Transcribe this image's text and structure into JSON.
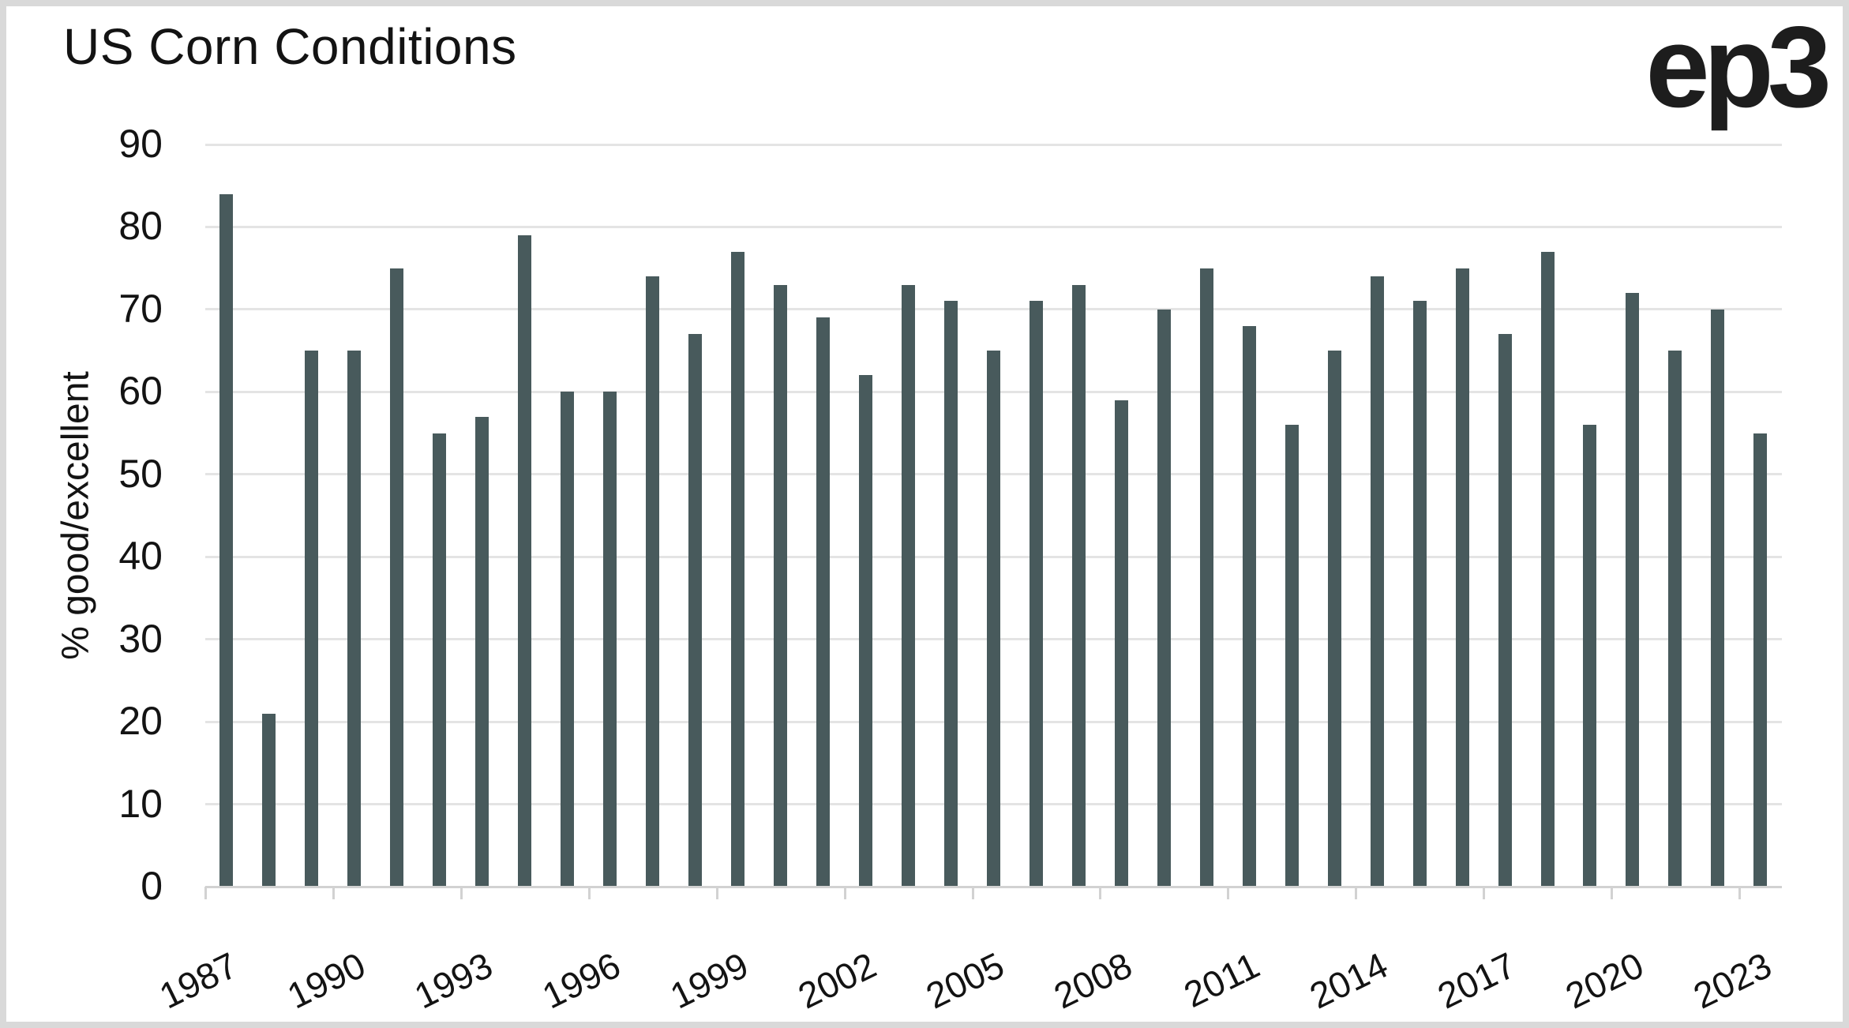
{
  "header": {
    "title": "US Corn Conditions",
    "logo_text": "ep3"
  },
  "colors": {
    "bar": "#485a5c",
    "grid": "#e4e4e4",
    "axis": "#d2d2d2",
    "text": "#131313",
    "border": "#d9d9d9",
    "background": "#ffffff"
  },
  "chart_data": {
    "type": "bar",
    "title": "US Corn Conditions",
    "xlabel": "",
    "ylabel": "% good/excellent",
    "ylim": [
      0,
      90
    ],
    "yticks": [
      0,
      10,
      20,
      30,
      40,
      50,
      60,
      70,
      80,
      90
    ],
    "grid": "horizontal",
    "legend": "none",
    "categories": [
      "1987",
      "1988",
      "1989",
      "1990",
      "1991",
      "1992",
      "1993",
      "1994",
      "1995",
      "1996",
      "1997",
      "1998",
      "1999",
      "2000",
      "2001",
      "2002",
      "2003",
      "2004",
      "2005",
      "2006",
      "2007",
      "2008",
      "2009",
      "2010",
      "2011",
      "2012",
      "2013",
      "2014",
      "2015",
      "2016",
      "2017",
      "2018",
      "2019",
      "2020",
      "2021",
      "2022",
      "2023"
    ],
    "values": [
      84,
      21,
      65,
      65,
      75,
      55,
      57,
      79,
      60,
      60,
      74,
      67,
      77,
      73,
      69,
      62,
      73,
      71,
      65,
      71,
      73,
      59,
      70,
      75,
      68,
      56,
      65,
      74,
      71,
      75,
      67,
      77,
      56,
      72,
      65,
      70,
      55
    ],
    "xtick_labels": [
      "1987",
      "1990",
      "1993",
      "1996",
      "1999",
      "2002",
      "2005",
      "2008",
      "2011",
      "2014",
      "2017",
      "2020",
      "2023"
    ],
    "xtick_step": 3
  }
}
